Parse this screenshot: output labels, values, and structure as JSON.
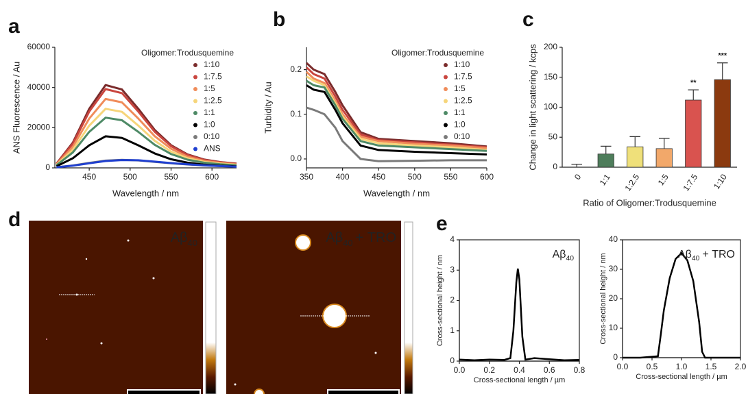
{
  "chart_data": [
    {
      "type": "line",
      "panel": "a",
      "ylabel": "ANS Fluorescence / Au",
      "xlabel": "Wavelength / nm",
      "legend_title": "Oligomer:Trodusquemine",
      "legend": "upper right",
      "x": [
        410,
        430,
        450,
        470,
        490,
        510,
        530,
        550,
        570,
        590,
        610,
        630
      ],
      "series": [
        {
          "name": "1:10",
          "color": "#7b2c2c",
          "values": [
            2100,
            12600,
            29400,
            41200,
            39000,
            29400,
            18900,
            11300,
            6700,
            4200,
            2900,
            2100
          ]
        },
        {
          "name": "1:7.5",
          "color": "#c9453e",
          "values": [
            2000,
            12000,
            28000,
            39200,
            37200,
            28000,
            18000,
            10800,
            6400,
            4000,
            2800,
            2000
          ]
        },
        {
          "name": "1:5",
          "color": "#f08c5a",
          "values": [
            1750,
            10500,
            24500,
            34300,
            32600,
            24500,
            15800,
            9500,
            5600,
            3500,
            2500,
            1750
          ]
        },
        {
          "name": "1:2.5",
          "color": "#f6d57a",
          "values": [
            1500,
            9000,
            21000,
            29400,
            27900,
            21000,
            13500,
            8100,
            4800,
            3000,
            2100,
            1500
          ]
        },
        {
          "name": "1:1",
          "color": "#4e8a66",
          "values": [
            1300,
            7700,
            17900,
            25000,
            23700,
            17900,
            11500,
            6900,
            4100,
            2600,
            1800,
            1300
          ]
        },
        {
          "name": "1:0",
          "color": "#000000",
          "values": [
            800,
            4800,
            11200,
            15700,
            14900,
            11200,
            7200,
            4300,
            2600,
            1600,
            1100,
            800
          ]
        },
        {
          "name": "0:10",
          "color": "#7a7a7a",
          "values": [
            300,
            1200,
            2500,
            3600,
            4000,
            3700,
            3000,
            2300,
            1700,
            1200,
            900,
            600
          ]
        },
        {
          "name": "ANS",
          "color": "#1f3fd0",
          "values": [
            300,
            1100,
            2300,
            3400,
            3900,
            3800,
            3100,
            2400,
            1800,
            1300,
            900,
            600
          ]
        }
      ],
      "xlim": [
        408,
        630
      ],
      "xticks": [
        450,
        500,
        550,
        600
      ],
      "ylim": [
        0,
        60000
      ],
      "yticks": [
        0,
        20000,
        40000,
        60000
      ]
    },
    {
      "type": "line",
      "panel": "b",
      "ylabel": "Turbidity / Au",
      "xlabel": "Wavelength / nm",
      "legend_title": "Oligomer:Trodusquemine",
      "legend": "upper right",
      "x": [
        350,
        360,
        375,
        390,
        400,
        425,
        450,
        500,
        550,
        600
      ],
      "series": [
        {
          "name": "1:10",
          "color": "#7b2c2c",
          "values": [
            0.215,
            0.2,
            0.19,
            0.15,
            0.12,
            0.06,
            0.045,
            0.04,
            0.035,
            0.028
          ]
        },
        {
          "name": "1:7.5",
          "color": "#c9453e",
          "values": [
            0.205,
            0.19,
            0.18,
            0.14,
            0.11,
            0.055,
            0.042,
            0.037,
            0.032,
            0.026
          ]
        },
        {
          "name": "1:5",
          "color": "#f08c5a",
          "values": [
            0.195,
            0.18,
            0.17,
            0.13,
            0.1,
            0.05,
            0.04,
            0.034,
            0.03,
            0.024
          ]
        },
        {
          "name": "1:2.5",
          "color": "#f6d57a",
          "values": [
            0.185,
            0.175,
            0.165,
            0.125,
            0.095,
            0.045,
            0.035,
            0.03,
            0.026,
            0.02
          ]
        },
        {
          "name": "1:1",
          "color": "#4e8a66",
          "values": [
            0.175,
            0.165,
            0.16,
            0.12,
            0.09,
            0.04,
            0.03,
            0.026,
            0.022,
            0.018
          ]
        },
        {
          "name": "1:0",
          "color": "#000000",
          "values": [
            0.165,
            0.155,
            0.15,
            0.11,
            0.08,
            0.03,
            0.02,
            0.016,
            0.013,
            0.01
          ]
        },
        {
          "name": "0:10",
          "color": "#7a7a7a",
          "values": [
            0.115,
            0.11,
            0.1,
            0.07,
            0.04,
            0.0,
            -0.005,
            -0.004,
            -0.003,
            -0.003
          ]
        }
      ],
      "xlim": [
        350,
        600
      ],
      "xticks": [
        350,
        400,
        450,
        500,
        550,
        600
      ],
      "ylim": [
        -0.02,
        0.25
      ],
      "yticks": [
        {
          "value": 0,
          "label": "0.0"
        },
        0.1,
        0.2
      ]
    },
    {
      "type": "bar",
      "panel": "c",
      "ylabel": "Change in light scattering / kcps",
      "xlabel": "Ratio of Oligomer:Trodusquemine",
      "categories": [
        "0",
        "1:1",
        "1:2.5",
        "1:5",
        "1:7.5",
        "1:10"
      ],
      "values": [
        0,
        22,
        34,
        31,
        112,
        146
      ],
      "errors": [
        5,
        13,
        17,
        17,
        17,
        28
      ],
      "colors": [
        "#ffffff",
        "#4e7d5b",
        "#efe07a",
        "#f2a86a",
        "#d9534f",
        "#8b3a0f"
      ],
      "annotations": [
        {
          "category": "1:7.5",
          "text": "**"
        },
        {
          "category": "1:10",
          "text": "***"
        }
      ],
      "ylim": [
        0,
        200
      ],
      "yticks": [
        0,
        50,
        100,
        150,
        200
      ]
    },
    {
      "type": "profile",
      "panel": "e",
      "ylabel": "Cross-sectional height / nm",
      "xlabel": "Cross-sectional length / µm",
      "label": {
        "text": "Aβ",
        "subscript": "40"
      },
      "color": "#000000",
      "x": [
        0,
        0.1,
        0.2,
        0.3,
        0.34,
        0.36,
        0.38,
        0.39,
        0.4,
        0.42,
        0.44,
        0.5,
        0.6,
        0.7,
        0.8
      ],
      "values": [
        0.05,
        0.03,
        0.05,
        0.04,
        0.1,
        1.0,
        2.6,
        3.05,
        2.7,
        0.8,
        0.05,
        0.1,
        0.06,
        0.03,
        0.04
      ],
      "xlim": [
        0,
        0.8
      ],
      "xticks": [
        {
          "value": 0,
          "label": "0.0"
        },
        0.2,
        0.4,
        0.6,
        0.8
      ],
      "ylim": [
        0,
        4
      ],
      "yticks": [
        0,
        1,
        2,
        3,
        4
      ]
    },
    {
      "type": "profile",
      "ylabel": "Cross-sectional height / nm",
      "xlabel": "Cross-sectional length / µm",
      "label": {
        "text": "Aβ",
        "subscript": "40",
        "suffix": "+ TRO"
      },
      "color": "#000000",
      "x": [
        0,
        0.3,
        0.6,
        0.65,
        0.7,
        0.8,
        0.9,
        1.0,
        1.1,
        1.2,
        1.3,
        1.35,
        1.4,
        1.7,
        2.0
      ],
      "values": [
        0,
        0,
        0.5,
        8,
        16,
        27,
        33.5,
        35.5,
        33,
        26,
        12,
        2,
        0,
        0,
        0
      ],
      "xlim": [
        0,
        2
      ],
      "xticks": [
        {
          "value": 0,
          "label": "0.0"
        },
        0.5,
        {
          "value": 1,
          "label": "1.0"
        },
        1.5,
        {
          "value": 2,
          "label": "2.0"
        }
      ],
      "ylim": [
        0,
        40
      ],
      "yticks": [
        0,
        10,
        20,
        30,
        40
      ]
    }
  ],
  "afm_panel": {
    "panel": "d",
    "images": [
      {
        "text": "Aβ",
        "subscript": "40"
      },
      {
        "text": "Aβ",
        "subscript": "40",
        "suffix": "+ TRO"
      }
    ]
  }
}
